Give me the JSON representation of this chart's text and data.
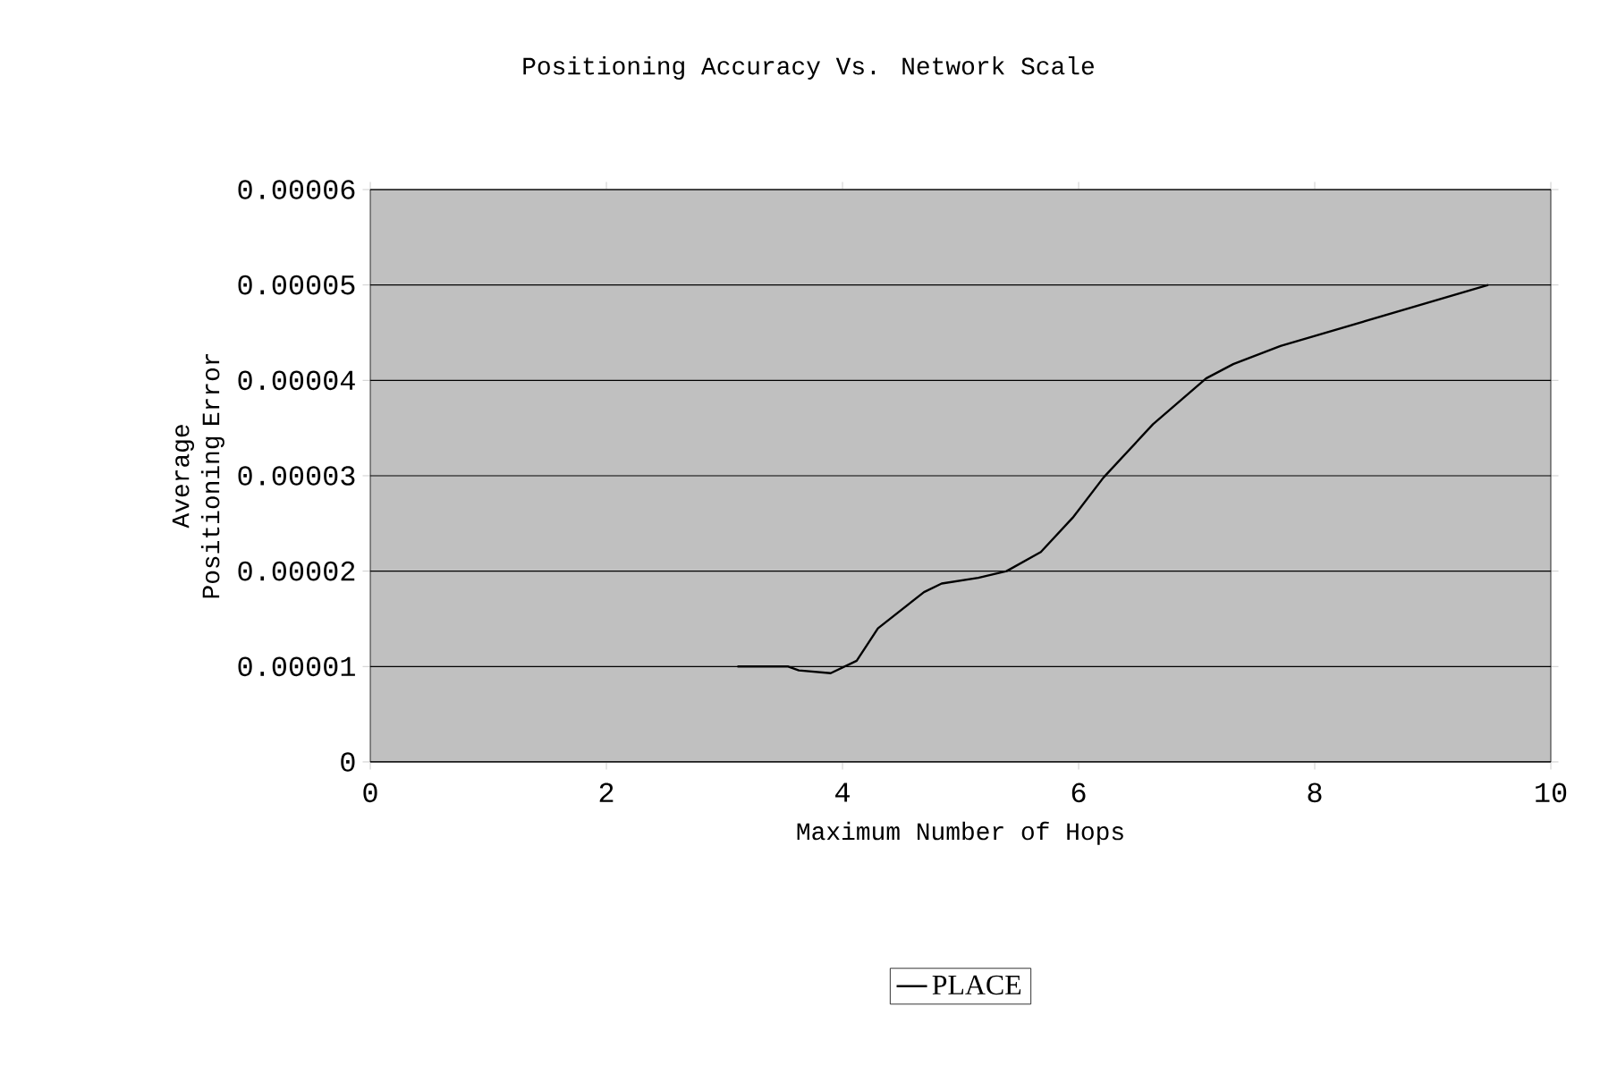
{
  "chart_data": {
    "type": "line",
    "title": "Positioning Accuracy Vs. Network Scale",
    "xlabel": "Maximum Number of Hops",
    "ylabel": "Average Positioning Error",
    "xlim": [
      0,
      10
    ],
    "xticks": [
      0,
      2,
      4,
      6,
      8,
      10
    ],
    "ylim": [
      0,
      6e-05
    ],
    "yticks": [
      {
        "value": 0,
        "label": "0"
      },
      {
        "value": 1e-05,
        "label": "0.00001"
      },
      {
        "value": 2e-05,
        "label": "0.00002"
      },
      {
        "value": 3e-05,
        "label": "0.00003"
      },
      {
        "value": 4e-05,
        "label": "0.00004"
      },
      {
        "value": 5e-05,
        "label": "0.00005"
      },
      {
        "value": 6e-05,
        "label": "0.00006"
      }
    ],
    "grid": "y",
    "legend": "bottom",
    "marker": "none",
    "line_style": "solid",
    "series": [
      {
        "name": "PLACE",
        "color": "#000000",
        "x": [
          3.11,
          3.54,
          3.63,
          3.9,
          4.12,
          4.3,
          4.69,
          4.84,
          5.15,
          5.39,
          5.68,
          5.95,
          6.21,
          6.63,
          7.08,
          7.31,
          7.71,
          9.47
        ],
        "values": [
          1e-05,
          1e-05,
          9.6e-06,
          9.3e-06,
          1.06e-05,
          1.4e-05,
          1.78e-05,
          1.87e-05,
          1.93e-05,
          2e-05,
          2.2e-05,
          2.56e-05,
          2.98e-05,
          3.54e-05,
          4.02e-05,
          4.17e-05,
          4.36e-05,
          5e-05
        ]
      }
    ]
  }
}
